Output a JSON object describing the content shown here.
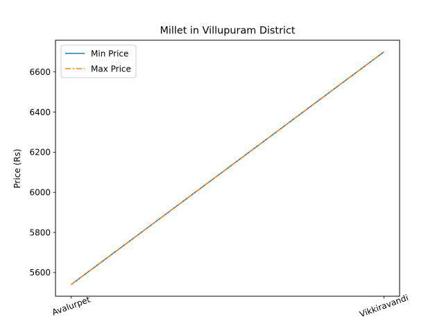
{
  "chart_data": {
    "type": "line",
    "title": "Millet in Villupuram District",
    "xlabel": "",
    "ylabel": "Price (Rs)",
    "categories": [
      "Avalurpet",
      "Vikkiravandi"
    ],
    "series": [
      {
        "name": "Min Price",
        "values": [
          5540,
          6700
        ],
        "color": "#1f77b4",
        "style": "solid"
      },
      {
        "name": "Max Price",
        "values": [
          5540,
          6700
        ],
        "color": "#ff7f0e",
        "style": "dashdot"
      }
    ],
    "ylim": [
      5482,
      6758
    ],
    "yticks": [
      5600,
      5800,
      6000,
      6200,
      6400,
      6600
    ],
    "grid": false,
    "legend": "top-left"
  }
}
